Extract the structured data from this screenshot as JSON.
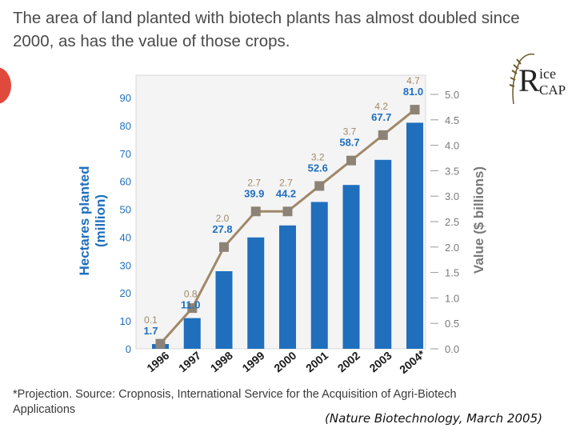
{
  "headline": {
    "line1": "The area of land planted with biotech plants has almost doubled since",
    "line2": "2000, as has the value of those crops."
  },
  "logo": {
    "big_letter": "R",
    "top_text": "ice",
    "bottom_text": "CAP"
  },
  "colors": {
    "bar": "#1f6fbd",
    "line": "#a08868",
    "marker": "#8c8376",
    "value_label": "#1f6fbd",
    "line_label": "#a08868",
    "axis_text": "#1f6fbd",
    "right_axis_text": "#7a7a7a",
    "plot_bg": "#f4f4f4"
  },
  "chart_data": {
    "type": "bar",
    "categories": [
      "1996",
      "1997",
      "1998",
      "1999",
      "2000",
      "2001",
      "2002",
      "2003",
      "2004*"
    ],
    "series": [
      {
        "values": [
          1.7,
          11.0,
          27.8,
          39.9,
          44.2,
          52.6,
          58.7,
          67.7,
          81.0
        ],
        "axis": "left",
        "kind": "bar"
      },
      {
        "values": [
          0.1,
          0.8,
          2.0,
          2.7,
          2.7,
          3.2,
          3.7,
          4.2,
          4.7
        ],
        "axis": "right",
        "kind": "line"
      }
    ],
    "bar_value_labels": [
      "1.7",
      "11.0",
      "27.8",
      "39.9",
      "44.2",
      "52.6",
      "58.7",
      "67.7",
      "81.0"
    ],
    "line_value_labels": [
      "0.1",
      "0.8",
      "2.0",
      "2.7",
      "2.7",
      "3.2",
      "3.7",
      "4.2",
      "4.7"
    ],
    "ylabel": "Hectares planted (million)",
    "ylabel_line1": "Hectares planted",
    "ylabel_line2": "(million)",
    "y2label": "Value ($ billions)",
    "ylim": [
      0,
      90
    ],
    "y2lim": [
      0,
      5.0
    ],
    "yticks": [
      "0",
      "10",
      "20",
      "30",
      "40",
      "50",
      "60",
      "70",
      "80",
      "90"
    ],
    "y2ticks": [
      "0.0",
      "0.5",
      "1.0",
      "1.5",
      "2.0",
      "2.5",
      "3.0",
      "3.5",
      "4.0",
      "4.5",
      "5.0"
    ],
    "grid": false
  },
  "footnote": {
    "line1": "*Projection. Source: Cropnosis, International Service for the Acquisition of Agri-Biotech",
    "line2": "Applications"
  },
  "citation": "(Nature Biotechnology, March 2005)"
}
